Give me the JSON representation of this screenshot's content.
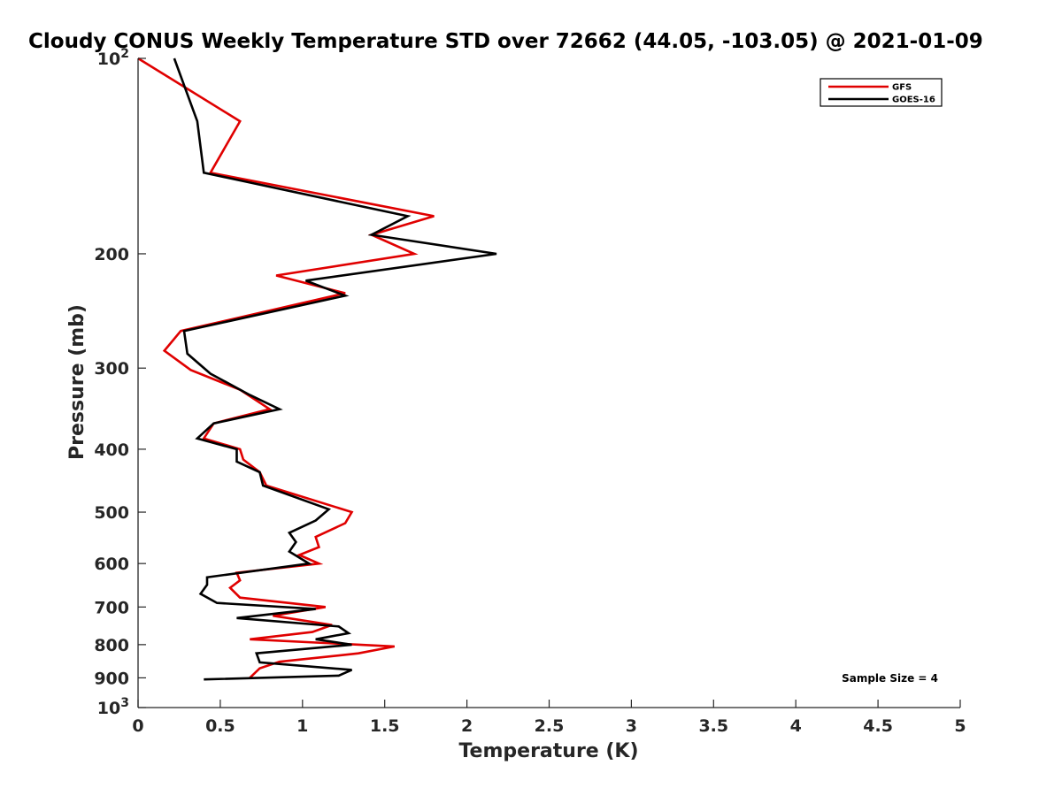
{
  "chart_data": {
    "type": "line",
    "title": "Cloudy CONUS Weekly Temperature STD over 72662 (44.05, -103.05) @ 2021-01-09",
    "xlabel": "Temperature (K)",
    "ylabel": "Pressure (mb)",
    "xlim": [
      0,
      5
    ],
    "ylim": [
      100,
      1000
    ],
    "y_scale": "log",
    "y_reversed": true,
    "x_ticks": [
      "0",
      "0.5",
      "1",
      "1.5",
      "2",
      "2.5",
      "3",
      "3.5",
      "4",
      "4.5",
      "5"
    ],
    "x_tick_values": [
      0,
      0.5,
      1,
      1.5,
      2,
      2.5,
      3,
      3.5,
      4,
      4.5,
      5
    ],
    "y_ticks": [
      {
        "value": 100,
        "label": "10",
        "sup": "2"
      },
      {
        "value": 200,
        "label": "200",
        "sup": ""
      },
      {
        "value": 300,
        "label": "300",
        "sup": ""
      },
      {
        "value": 400,
        "label": "400",
        "sup": ""
      },
      {
        "value": 500,
        "label": "500",
        "sup": ""
      },
      {
        "value": 600,
        "label": "600",
        "sup": ""
      },
      {
        "value": 700,
        "label": "700",
        "sup": ""
      },
      {
        "value": 800,
        "label": "800",
        "sup": ""
      },
      {
        "value": 900,
        "label": "900",
        "sup": ""
      },
      {
        "value": 1000,
        "label": "10",
        "sup": "3"
      }
    ],
    "grid": false,
    "legend_position": "top-right",
    "annotation": "Sample Size = 4",
    "series": [
      {
        "name": "GFS",
        "color": "#e00000",
        "points": [
          [
            0.0,
            100
          ],
          [
            0.62,
            125
          ],
          [
            0.44,
            150
          ],
          [
            1.8,
            175
          ],
          [
            1.42,
            187
          ],
          [
            1.68,
            200
          ],
          [
            0.84,
            216
          ],
          [
            1.26,
            230
          ],
          [
            0.26,
            263
          ],
          [
            0.16,
            282
          ],
          [
            0.32,
            302
          ],
          [
            0.62,
            324
          ],
          [
            0.8,
            347
          ],
          [
            0.46,
            365
          ],
          [
            0.4,
            385
          ],
          [
            0.62,
            400
          ],
          [
            0.64,
            415
          ],
          [
            0.74,
            434
          ],
          [
            0.78,
            455
          ],
          [
            1.3,
            500
          ],
          [
            1.26,
            520
          ],
          [
            1.08,
            546
          ],
          [
            1.1,
            566
          ],
          [
            0.98,
            582
          ],
          [
            1.1,
            600
          ],
          [
            0.6,
            620
          ],
          [
            0.62,
            637
          ],
          [
            0.56,
            654
          ],
          [
            0.62,
            677
          ],
          [
            1.14,
            700
          ],
          [
            0.82,
            722
          ],
          [
            1.18,
            746
          ],
          [
            1.06,
            765
          ],
          [
            0.68,
            785
          ],
          [
            1.56,
            805
          ],
          [
            1.34,
            825
          ],
          [
            0.86,
            850
          ],
          [
            0.74,
            870
          ],
          [
            0.68,
            900
          ]
        ]
      },
      {
        "name": "GOES-16",
        "color": "#000000",
        "points": [
          [
            0.22,
            100
          ],
          [
            0.36,
            125
          ],
          [
            0.4,
            150
          ],
          [
            1.64,
            175
          ],
          [
            1.42,
            187
          ],
          [
            2.18,
            200
          ],
          [
            1.02,
            220
          ],
          [
            1.26,
            232
          ],
          [
            0.28,
            263
          ],
          [
            0.3,
            285
          ],
          [
            0.44,
            306
          ],
          [
            0.68,
            330
          ],
          [
            0.86,
            347
          ],
          [
            0.46,
            365
          ],
          [
            0.36,
            385
          ],
          [
            0.6,
            400
          ],
          [
            0.6,
            418
          ],
          [
            0.74,
            434
          ],
          [
            0.76,
            455
          ],
          [
            1.16,
            495
          ],
          [
            1.08,
            515
          ],
          [
            0.92,
            538
          ],
          [
            0.96,
            556
          ],
          [
            0.92,
            575
          ],
          [
            1.04,
            600
          ],
          [
            0.42,
            630
          ],
          [
            0.42,
            647
          ],
          [
            0.38,
            668
          ],
          [
            0.48,
            690
          ],
          [
            1.08,
            705
          ],
          [
            0.6,
            728
          ],
          [
            1.22,
            750
          ],
          [
            1.28,
            768
          ],
          [
            1.08,
            785
          ],
          [
            1.3,
            800
          ],
          [
            0.72,
            825
          ],
          [
            0.74,
            852
          ],
          [
            1.3,
            875
          ],
          [
            1.22,
            893
          ],
          [
            0.4,
            905
          ]
        ]
      }
    ]
  }
}
